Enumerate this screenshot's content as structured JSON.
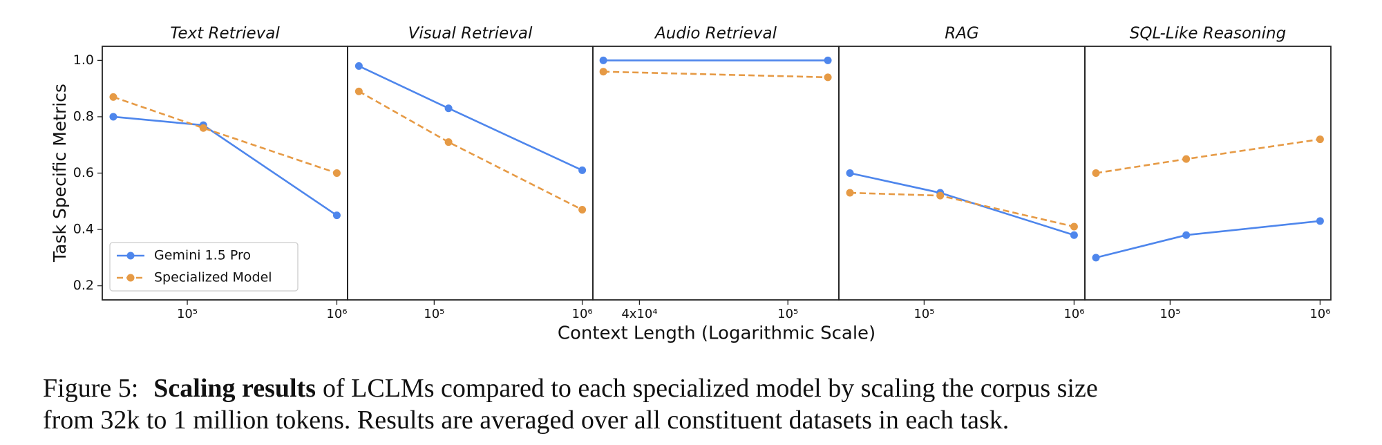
{
  "figure": {
    "ylabel": "Task Specific Metrics",
    "xlabel": "Context Length (Logarithmic Scale)"
  },
  "chart_data": [
    {
      "type": "line",
      "title": "Text Retrieval",
      "log_x": true,
      "legend": "lower left",
      "xlim": [
        27000,
        1180000
      ],
      "xticks": [
        {
          "value": 100000,
          "label": "10⁵"
        },
        {
          "value": 1000000,
          "label": "10⁶"
        }
      ],
      "ylim": [
        0.15,
        1.05
      ],
      "yticks": [
        0.2,
        0.4,
        0.6,
        0.8,
        {
          "value": 1,
          "label": "1.0"
        }
      ],
      "x": [
        32000,
        128000,
        1000000
      ],
      "series": [
        {
          "name": "Gemini 1.5 Pro",
          "color": "#4e86ec",
          "linestyle": "solid",
          "values": [
            0.8,
            0.77,
            0.45
          ]
        },
        {
          "name": "Specialized Model",
          "color": "#e69a45",
          "linestyle": "dashed",
          "values": [
            0.87,
            0.76,
            0.6
          ]
        }
      ]
    },
    {
      "type": "line",
      "title": "Visual Retrieval",
      "log_x": true,
      "xlim": [
        26000,
        1180000
      ],
      "xticks": [
        {
          "value": 100000,
          "label": "10⁵"
        },
        {
          "value": 1000000,
          "label": "10⁶"
        }
      ],
      "ylim": [
        0.15,
        1.05
      ],
      "x": [
        31000,
        125000,
        1000000
      ],
      "series": [
        {
          "color": "#4e86ec",
          "linestyle": "solid",
          "values": [
            0.98,
            0.83,
            0.61
          ]
        },
        {
          "color": "#e69a45",
          "linestyle": "dashed",
          "values": [
            0.89,
            0.71,
            0.47
          ]
        }
      ]
    },
    {
      "type": "line",
      "title": "Audio Retrieval",
      "log_x": true,
      "xlim": [
        30000,
        137000
      ],
      "xticks": [
        {
          "value": 40000,
          "label": "4x10⁴"
        },
        {
          "value": 100000,
          "label": "10⁵"
        }
      ],
      "ylim": [
        0.15,
        1.05
      ],
      "x": [
        32000,
        128000
      ],
      "series": [
        {
          "color": "#4e86ec",
          "linestyle": "solid",
          "values": [
            1.0,
            1.0
          ]
        },
        {
          "color": "#e69a45",
          "linestyle": "dashed",
          "values": [
            0.96,
            0.94
          ]
        }
      ]
    },
    {
      "type": "line",
      "title": "RAG",
      "log_x": true,
      "xlim": [
        27000,
        1180000
      ],
      "xticks": [
        {
          "value": 100000,
          "label": "10⁵"
        },
        {
          "value": 1000000,
          "label": "10⁶"
        }
      ],
      "ylim": [
        0.15,
        1.05
      ],
      "x": [
        32000,
        128000,
        1000000
      ],
      "series": [
        {
          "color": "#4e86ec",
          "linestyle": "solid",
          "values": [
            0.6,
            0.53,
            0.38
          ]
        },
        {
          "color": "#e69a45",
          "linestyle": "dashed",
          "values": [
            0.53,
            0.52,
            0.41
          ]
        }
      ]
    },
    {
      "type": "line",
      "title": "SQL-Like Reasoning",
      "log_x": true,
      "xlim": [
        27000,
        1180000
      ],
      "xticks": [
        {
          "value": 100000,
          "label": "10⁵"
        },
        {
          "value": 1000000,
          "label": "10⁶"
        }
      ],
      "ylim": [
        0.15,
        1.05
      ],
      "x": [
        32000,
        128000,
        1000000
      ],
      "series": [
        {
          "color": "#4e86ec",
          "linestyle": "solid",
          "values": [
            0.3,
            0.38,
            0.43
          ]
        },
        {
          "color": "#e69a45",
          "linestyle": "dashed",
          "values": [
            0.6,
            0.65,
            0.72
          ]
        }
      ]
    }
  ],
  "caption": {
    "label": "Figure 5:",
    "bold": "Scaling results",
    "line1": "of LCLMs compared to each specialized model by scaling the corpus size",
    "line2": "from 32k to 1 million tokens. Results are averaged over all constituent datasets in each task."
  }
}
